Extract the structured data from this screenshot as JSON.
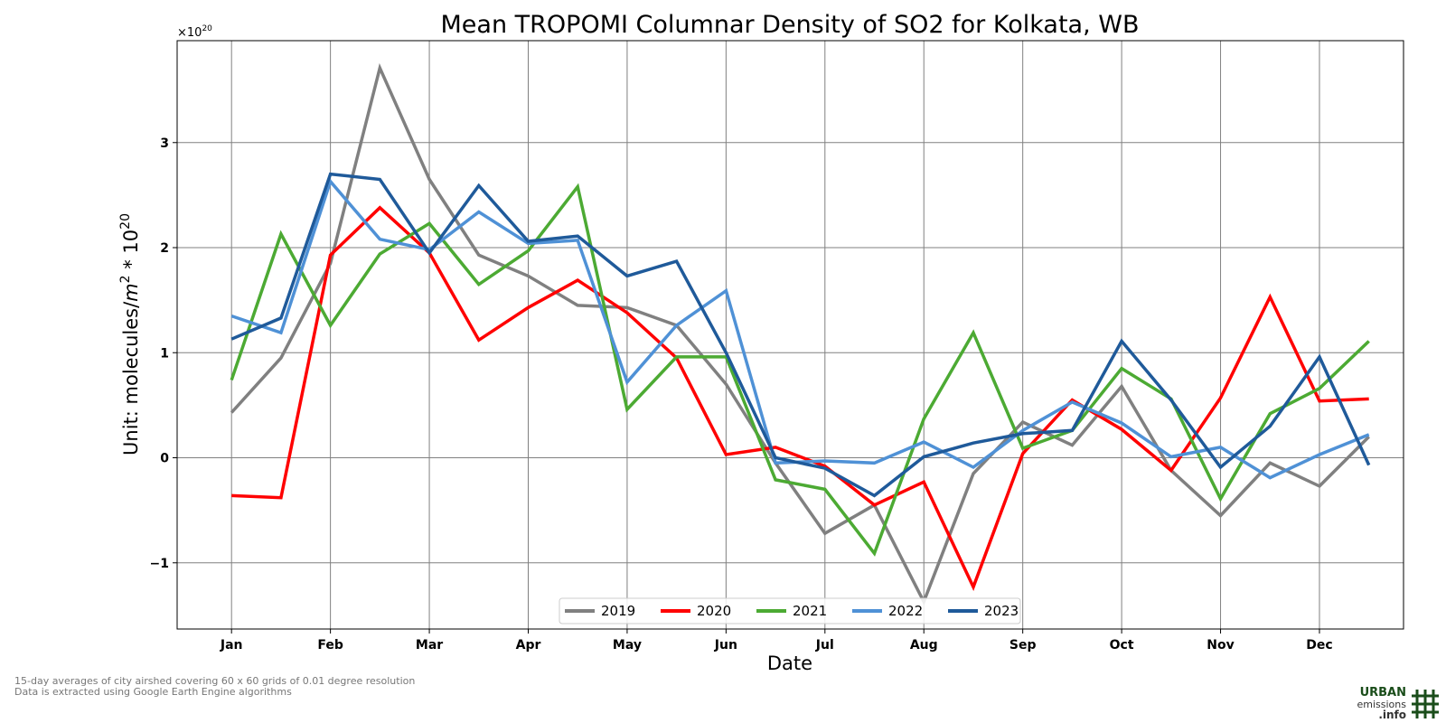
{
  "chart_data": {
    "type": "line",
    "title": "Mean TROPOMI Columnar Density of SO2 for Kolkata, WB",
    "xlabel": "Date",
    "ylabel_main": "Unit: molecules/",
    "ylabel_m": "m",
    "ylabel_exp1": "2",
    "ylabel_mid": " * 10",
    "ylabel_exp2": "20",
    "multiplier_base": "×10",
    "multiplier_exp": "20",
    "x_tick_labels": [
      "Jan",
      "Feb",
      "Mar",
      "Apr",
      "May",
      "Jun",
      "Jul",
      "Aug",
      "Sep",
      "Oct",
      "Nov",
      "Dec"
    ],
    "y_ticks": [
      -1,
      0,
      1,
      2,
      3
    ],
    "y_tick_labels": [
      "−1",
      "0",
      "1",
      "2",
      "3"
    ],
    "xlim": [
      -0.55,
      11.85
    ],
    "ylim": [
      -1.63,
      3.97
    ],
    "grid": true,
    "legend_position": "bottom-center",
    "x": [
      0,
      0.5,
      1,
      1.5,
      2,
      2.5,
      3,
      3.5,
      4,
      4.5,
      5,
      5.5,
      6,
      6.5,
      7,
      7.5,
      8,
      8.5,
      9,
      9.5,
      10,
      10.5,
      11,
      11.5
    ],
    "series": [
      {
        "name": "2019",
        "color": "#808080",
        "values": [
          0.43,
          0.95,
          1.85,
          3.71,
          2.65,
          1.93,
          1.73,
          1.45,
          1.43,
          1.26,
          0.7,
          -0.05,
          -0.72,
          -0.45,
          -1.37,
          -0.15,
          0.34,
          0.12,
          0.68,
          -0.12,
          -0.55,
          -0.05,
          -0.27,
          0.2
        ]
      },
      {
        "name": "2020",
        "color": "#ff0000",
        "values": [
          -0.36,
          -0.38,
          1.93,
          2.38,
          1.95,
          1.12,
          1.43,
          1.69,
          1.38,
          0.95,
          0.03,
          0.1,
          -0.08,
          -0.45,
          -0.23,
          -1.23,
          0.04,
          0.55,
          0.27,
          -0.12,
          0.57,
          1.53,
          0.54,
          0.56
        ]
      },
      {
        "name": "2021",
        "color": "#4caa33",
        "values": [
          0.74,
          2.13,
          1.26,
          1.94,
          2.23,
          1.65,
          1.97,
          2.58,
          0.46,
          0.96,
          0.96,
          -0.21,
          -0.3,
          -0.91,
          0.37,
          1.19,
          0.09,
          0.26,
          0.85,
          0.56,
          -0.39,
          0.42,
          0.66,
          1.11
        ]
      },
      {
        "name": "2022",
        "color": "#4f91d6",
        "values": [
          1.35,
          1.19,
          2.63,
          2.08,
          1.98,
          2.34,
          2.04,
          2.07,
          0.72,
          1.26,
          1.59,
          -0.05,
          -0.03,
          -0.05,
          0.15,
          -0.09,
          0.26,
          0.53,
          0.33,
          0.01,
          0.1,
          -0.19,
          0.03,
          0.22
        ]
      },
      {
        "name": "2023",
        "color": "#1f5a9a",
        "values": [
          1.13,
          1.33,
          2.7,
          2.65,
          1.95,
          2.59,
          2.06,
          2.11,
          1.73,
          1.87,
          1.0,
          0.0,
          -0.1,
          -0.36,
          0.01,
          0.14,
          0.23,
          0.26,
          1.11,
          0.55,
          -0.09,
          0.3,
          0.96,
          -0.07
        ]
      }
    ]
  },
  "footer": {
    "line1": "15-day averages of city airshed covering 60 x 60 grids of 0.01 degree resolution",
    "line2": "Data is extracted using Google Earth Engine algorithms"
  },
  "logo": {
    "line1": "URBAN",
    "line2": "emissions",
    "line3": ".info",
    "color": "#1a4d1a"
  }
}
